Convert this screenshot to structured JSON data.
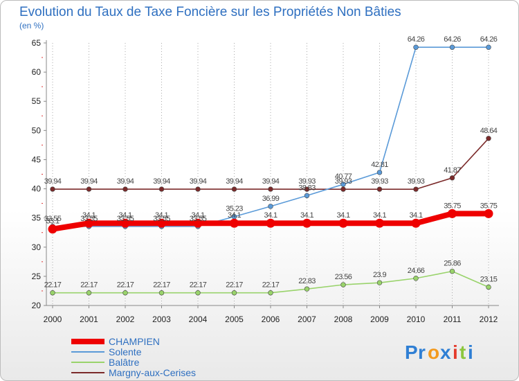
{
  "chart_data": {
    "type": "line",
    "title": "Evolution du Taux de Taxe Foncière sur les Propriétés Non Bâties",
    "unit_label": "(en %)",
    "xlabel": "",
    "ylabel": "(en %)",
    "ylim": [
      20,
      65
    ],
    "yticks": [
      20,
      25,
      30,
      35,
      40,
      45,
      50,
      55,
      60,
      65
    ],
    "grid": "vertical-dotted",
    "legend_position": "bottom-left",
    "categories": [
      "2000",
      "2001",
      "2002",
      "2003",
      "2004",
      "2005",
      "2006",
      "2007",
      "2008",
      "2009",
      "2010",
      "2011",
      "2012"
    ],
    "series": [
      {
        "name": "Margny-aux-Cerises",
        "color": "#7b2a2a",
        "values": [
          39.94,
          39.94,
          39.94,
          39.94,
          39.94,
          39.94,
          39.94,
          39.93,
          39.93,
          39.93,
          39.93,
          41.87,
          48.64
        ],
        "labels": [
          "39.94",
          "39.94",
          "39.94",
          "39.94",
          "39.94",
          "39.94",
          "39.94",
          "39.93",
          "39.93",
          "39.93",
          "39.93",
          "41.87",
          "48.64"
        ]
      },
      {
        "name": "Balâtre",
        "color": "#99d36b",
        "values": [
          22.17,
          22.17,
          22.17,
          22.17,
          22.17,
          22.17,
          22.17,
          22.83,
          23.56,
          23.9,
          24.66,
          25.86,
          23.15
        ],
        "labels": [
          "22.17",
          "22.17",
          "22.17",
          "22.17",
          "22.17",
          "22.17",
          "22.17",
          "22.83",
          "23.56",
          "23.9",
          "24.66",
          "25.86",
          "23.15"
        ]
      },
      {
        "name": "Solente",
        "color": "#5a9ad8",
        "values": [
          33.55,
          33.55,
          33.55,
          33.55,
          33.55,
          35.23,
          36.99,
          38.83,
          40.77,
          42.81,
          64.26,
          64.26,
          64.26
        ],
        "labels": [
          "33.55",
          "33.55",
          "33.55",
          "33.55",
          "33.55",
          "35.23",
          "36.99",
          "38.83",
          "40.77",
          "42.81",
          "64.26",
          "64.26",
          "64.26"
        ]
      },
      {
        "name": "CHAMPIEN",
        "color": "#ee0000",
        "values": [
          33.1,
          34.1,
          34.1,
          34.1,
          34.1,
          34.1,
          34.1,
          34.1,
          34.1,
          34.1,
          34.1,
          35.75,
          35.75
        ],
        "labels": [
          "33.1",
          "34.1",
          "34.1",
          "34.1",
          "34.1",
          "34.1",
          "34.1",
          "34.1",
          "34.1",
          "34.1",
          "34.1",
          "35.75",
          "35.75"
        ]
      }
    ],
    "legend": [
      "CHAMPIEN",
      "Solente",
      "Balâtre",
      "Margny-aux-Cerises"
    ]
  },
  "logo": {
    "text": "Proxiti",
    "letters": [
      "P",
      "r",
      "o",
      "x",
      "i",
      "t",
      "i"
    ],
    "colors": [
      "#2f7fd4",
      "#2f7fd4",
      "#f39a1e",
      "#2f7fd4",
      "#e43b2c",
      "#8cc63e",
      "#2f7fd4"
    ]
  }
}
